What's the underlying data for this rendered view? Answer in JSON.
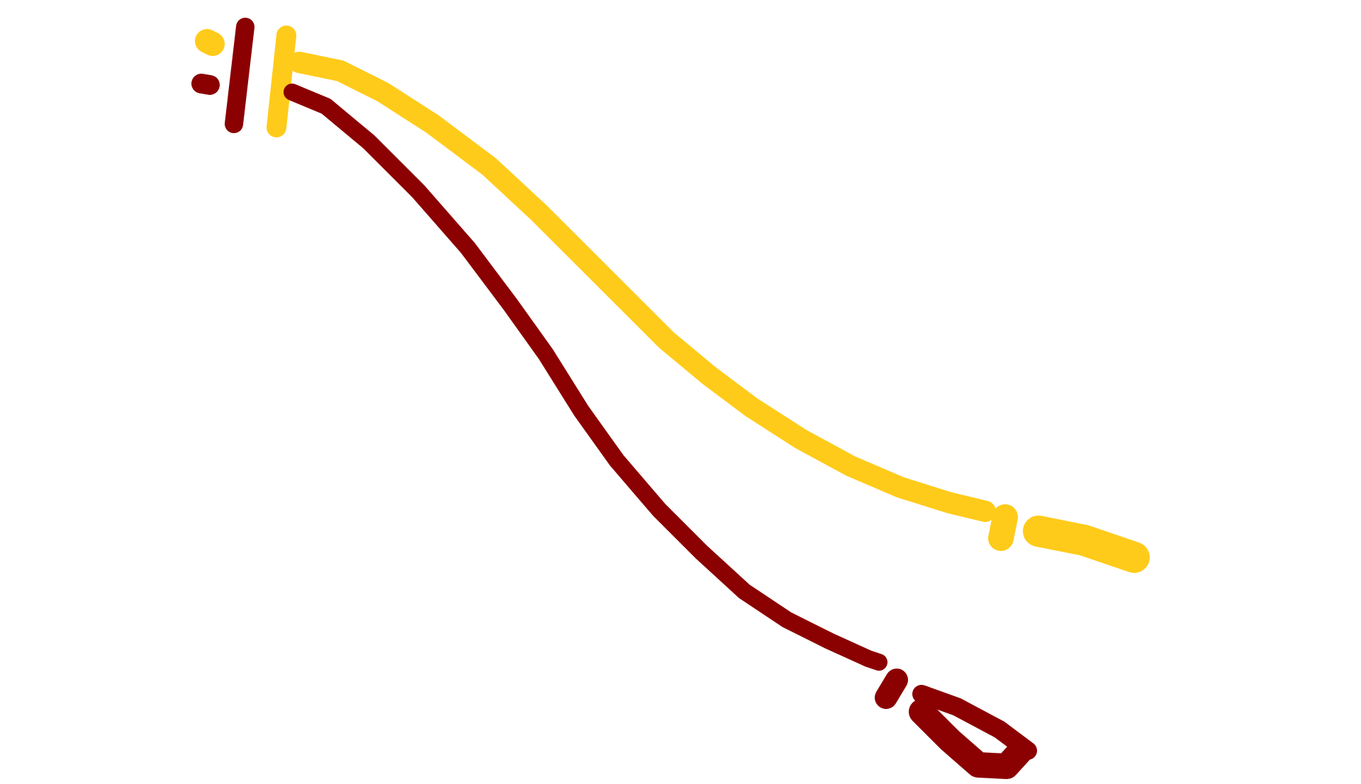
{
  "colors": {
    "background": "#ffffff",
    "maroon": "#8b0000",
    "gold": "#ffcb1a"
  },
  "strokes": [
    {
      "name": "maroon-stripe",
      "color_key": "maroon"
    },
    {
      "name": "gold-stripe",
      "color_key": "gold"
    }
  ]
}
